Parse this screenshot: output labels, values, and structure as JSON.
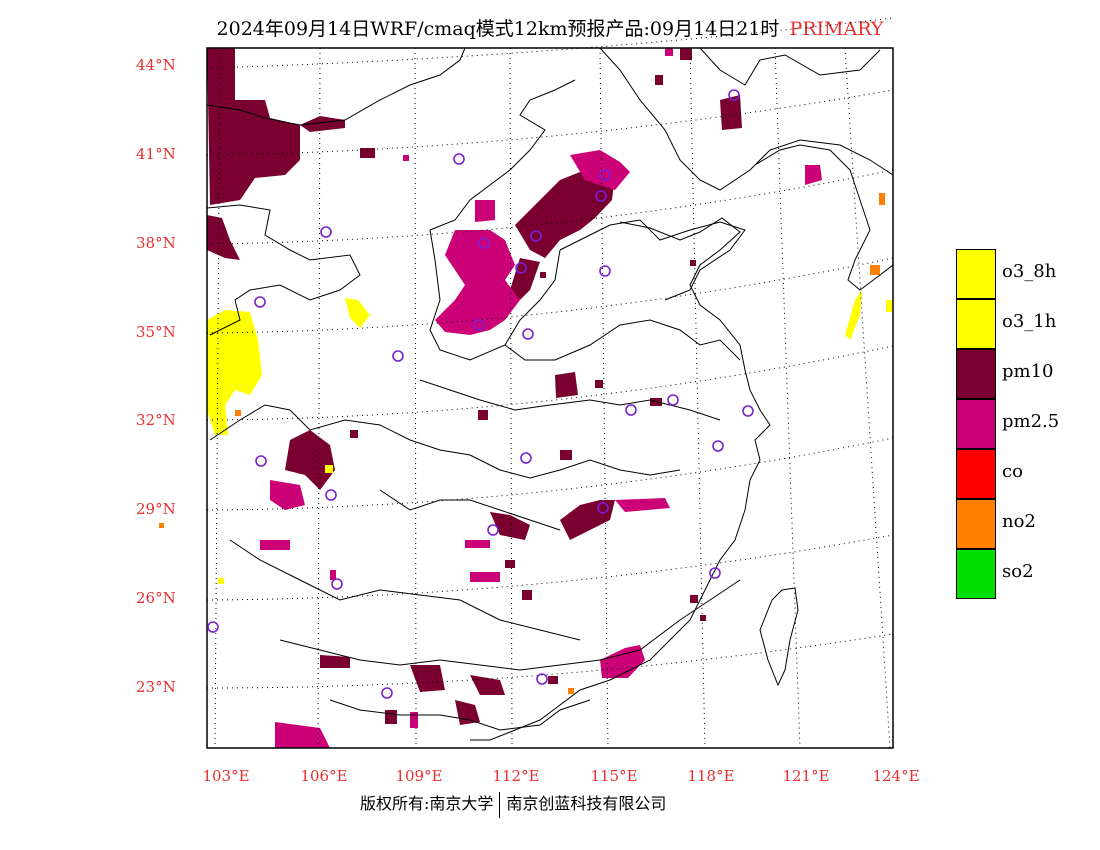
{
  "title": {
    "main": "2024年09月14日WRF/cmaq模式12km预报产品:09月14日21时",
    "tag": "PRIMARY"
  },
  "lat_labels": [
    "44°N",
    "41°N",
    "38°N",
    "35°N",
    "32°N",
    "29°N",
    "26°N",
    "23°N"
  ],
  "lon_labels": [
    "103°E",
    "106°E",
    "109°E",
    "112°E",
    "115°E",
    "118°E",
    "121°E",
    "124°E"
  ],
  "legend": [
    {
      "label": "o3_8h",
      "color": "#ffff00"
    },
    {
      "label": "o3_1h",
      "color": "#ffff00"
    },
    {
      "label": "pm10",
      "color": "#7a0030"
    },
    {
      "label": "pm2.5",
      "color": "#cc0077"
    },
    {
      "label": "co",
      "color": "#ff0000"
    },
    {
      "label": "no2",
      "color": "#ff7f00"
    },
    {
      "label": "so2",
      "color": "#00dd00"
    }
  ],
  "footer": {
    "left": "版权所有:南京大学",
    "right": "南京创蓝科技有限公司"
  },
  "colors": {
    "label_red": "#e83030",
    "station_ring": "#7a1fd6"
  }
}
